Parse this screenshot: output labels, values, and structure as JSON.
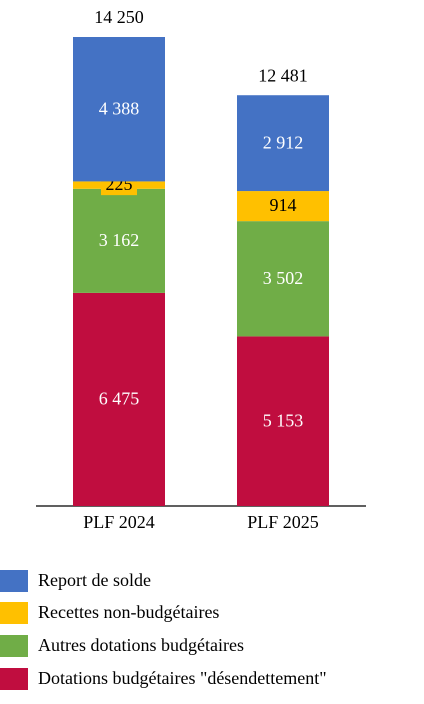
{
  "chart_data": {
    "type": "stacked_bar",
    "categories": [
      "PLF 2024",
      "PLF 2025"
    ],
    "series": [
      {
        "name": "Report de solde",
        "color": "#4472c4",
        "values": [
          4388,
          2912
        ],
        "value_labels": [
          "4 388",
          "2 912"
        ]
      },
      {
        "name": "Recettes non-budgétaires",
        "color": "#ffc000",
        "values": [
          225,
          914
        ],
        "value_labels": [
          "225",
          "914"
        ]
      },
      {
        "name": "Autres dotations budgétaires",
        "color": "#70ad47",
        "values": [
          3162,
          3502
        ],
        "value_labels": [
          "3 162",
          "3 502"
        ]
      },
      {
        "name": "Dotations budgétaires \"désendettement\"",
        "color": "#c00d3f",
        "values": [
          6475,
          5153
        ],
        "value_labels": [
          "6 475",
          "5 153"
        ]
      }
    ],
    "totals": [
      14250,
      12481
    ],
    "total_labels": [
      "14 250",
      "12 481"
    ],
    "legend": "bottom"
  }
}
